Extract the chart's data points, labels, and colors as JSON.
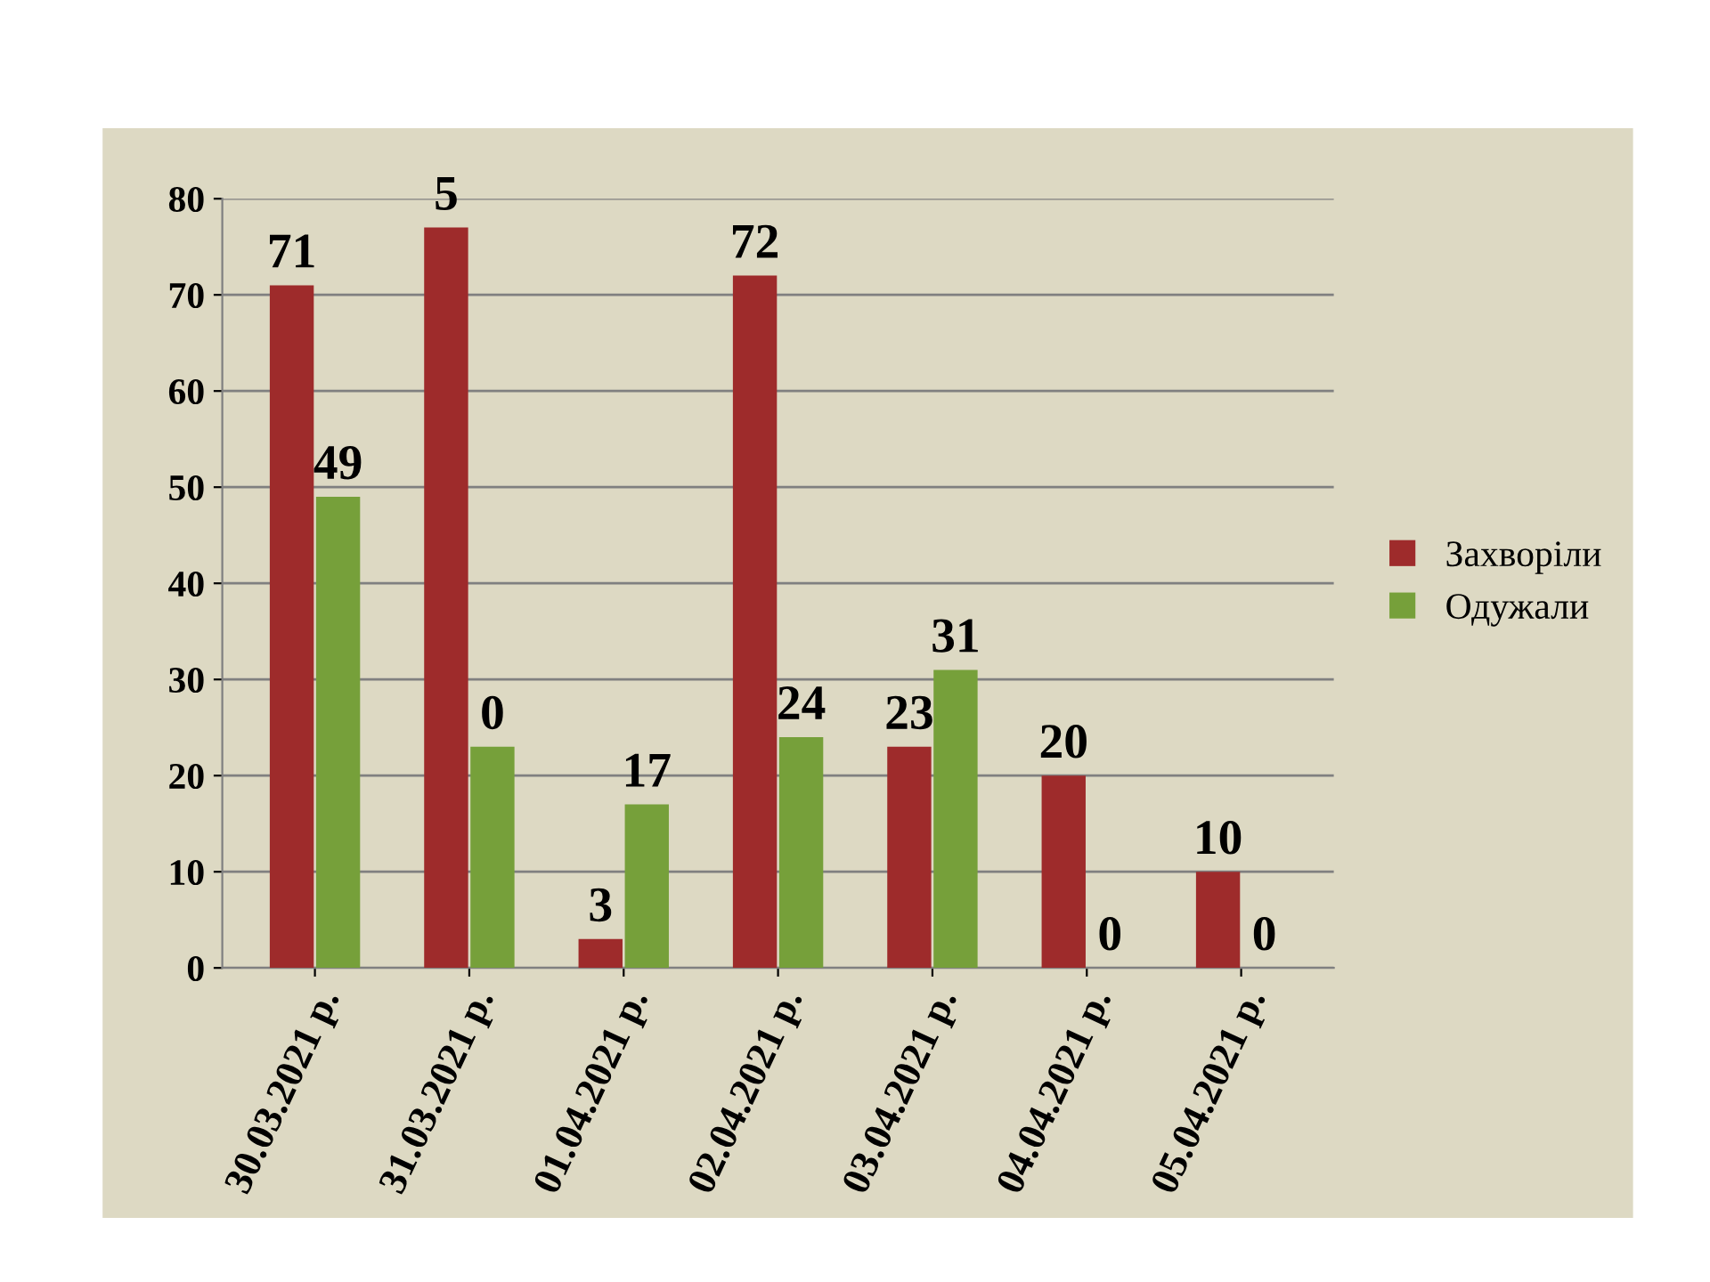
{
  "chart_data": {
    "type": "bar",
    "categories": [
      "30.03.2021 р.",
      "31.03.2021 р.",
      "01.04.2021 р.",
      "02.04.2021 р.",
      "03.04.2021 р.",
      "04.04.2021 р.",
      "05.04.2021 р."
    ],
    "series": [
      {
        "name": "Захворіли",
        "color": "#9e2b2b",
        "values": [
          71,
          77,
          3,
          72,
          23,
          20,
          10
        ],
        "value_labels": [
          "71",
          null,
          "3",
          "72",
          "23",
          "20",
          "10"
        ]
      },
      {
        "name": "Одужали",
        "color": "#76a03a",
        "values": [
          49,
          23,
          17,
          24,
          31,
          0,
          0
        ],
        "value_labels": [
          "49",
          null,
          "17",
          "24",
          "31",
          "0",
          "0"
        ]
      }
    ],
    "annotations": [
      {
        "text": "5",
        "x": "31.03.2021 р.",
        "y": 77
      },
      {
        "text": "0",
        "x": "31.03.2021 р.",
        "y": 23
      }
    ],
    "ylim": [
      0,
      80
    ],
    "yticks": [
      0,
      10,
      20,
      30,
      40,
      50,
      60,
      70,
      80
    ],
    "grid": "y",
    "legend": "right"
  }
}
